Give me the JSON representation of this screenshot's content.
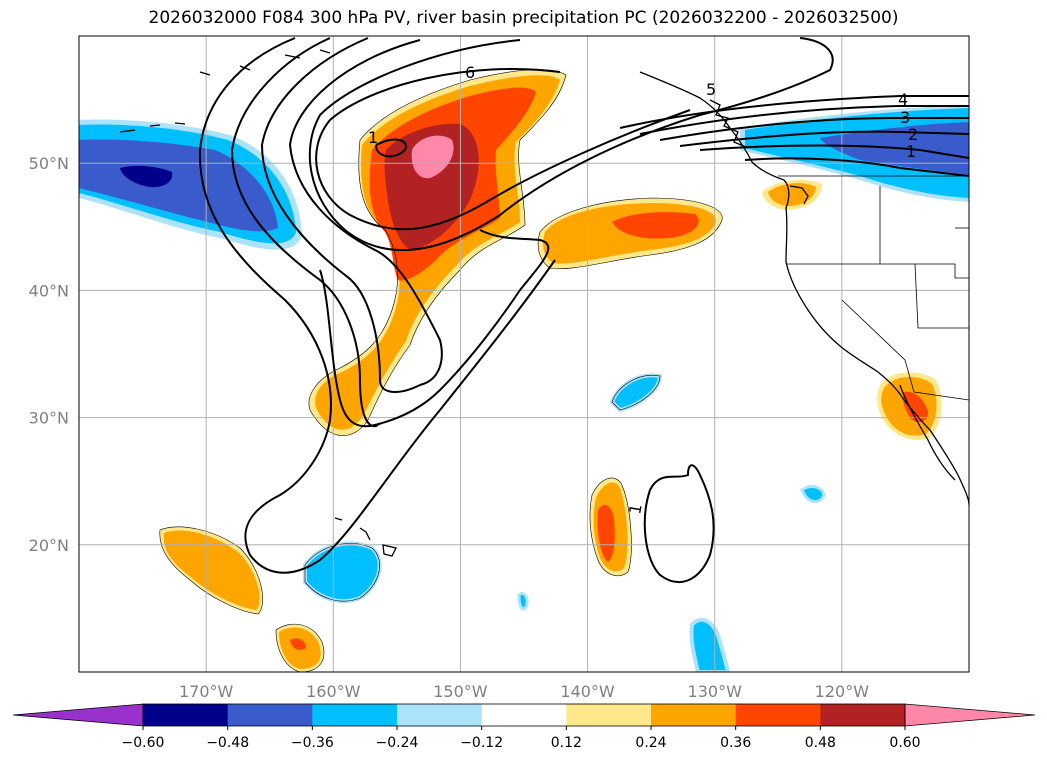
{
  "title": "2026032000 F084 300 hPa PV, river basin precipitation PC (2026032200 - 2026032500)",
  "map": {
    "projection": "PlateCarree",
    "lon_range": [
      -180,
      -110
    ],
    "lat_range": [
      10,
      60
    ],
    "grid": true,
    "lat_ticks": [
      {
        "value": 20,
        "label": "20°N"
      },
      {
        "value": 30,
        "label": "30°N"
      },
      {
        "value": 40,
        "label": "40°N"
      },
      {
        "value": 50,
        "label": "50°N"
      }
    ],
    "lon_ticks": [
      {
        "value": -170,
        "label": "170°W"
      },
      {
        "value": -160,
        "label": "160°W"
      },
      {
        "value": -150,
        "label": "150°W"
      },
      {
        "value": -140,
        "label": "140°W"
      },
      {
        "value": -130,
        "label": "130°W"
      },
      {
        "value": -120,
        "label": "120°W"
      }
    ]
  },
  "pv_contour_labels": [
    "1",
    "1",
    "2",
    "3",
    "4",
    "5",
    "6",
    "1"
  ],
  "colorbar": {
    "orientation": "horizontal",
    "extend": "both",
    "boundaries": [
      -0.6,
      -0.48,
      -0.36,
      -0.24,
      -0.12,
      0.12,
      0.24,
      0.36,
      0.48,
      0.6
    ],
    "tick_labels": [
      "−0.60",
      "−0.48",
      "−0.36",
      "−0.24",
      "−0.12",
      "0.12",
      "0.24",
      "0.36",
      "0.48",
      "0.60"
    ],
    "colors": [
      "#9932CC",
      "#00008B",
      "#3A5BCC",
      "#00BFFF",
      "#ADE3FA",
      "#FFFFFF",
      "#FFE88A",
      "#FFA500",
      "#FF4500",
      "#B22222",
      "#FF88AA"
    ]
  }
}
